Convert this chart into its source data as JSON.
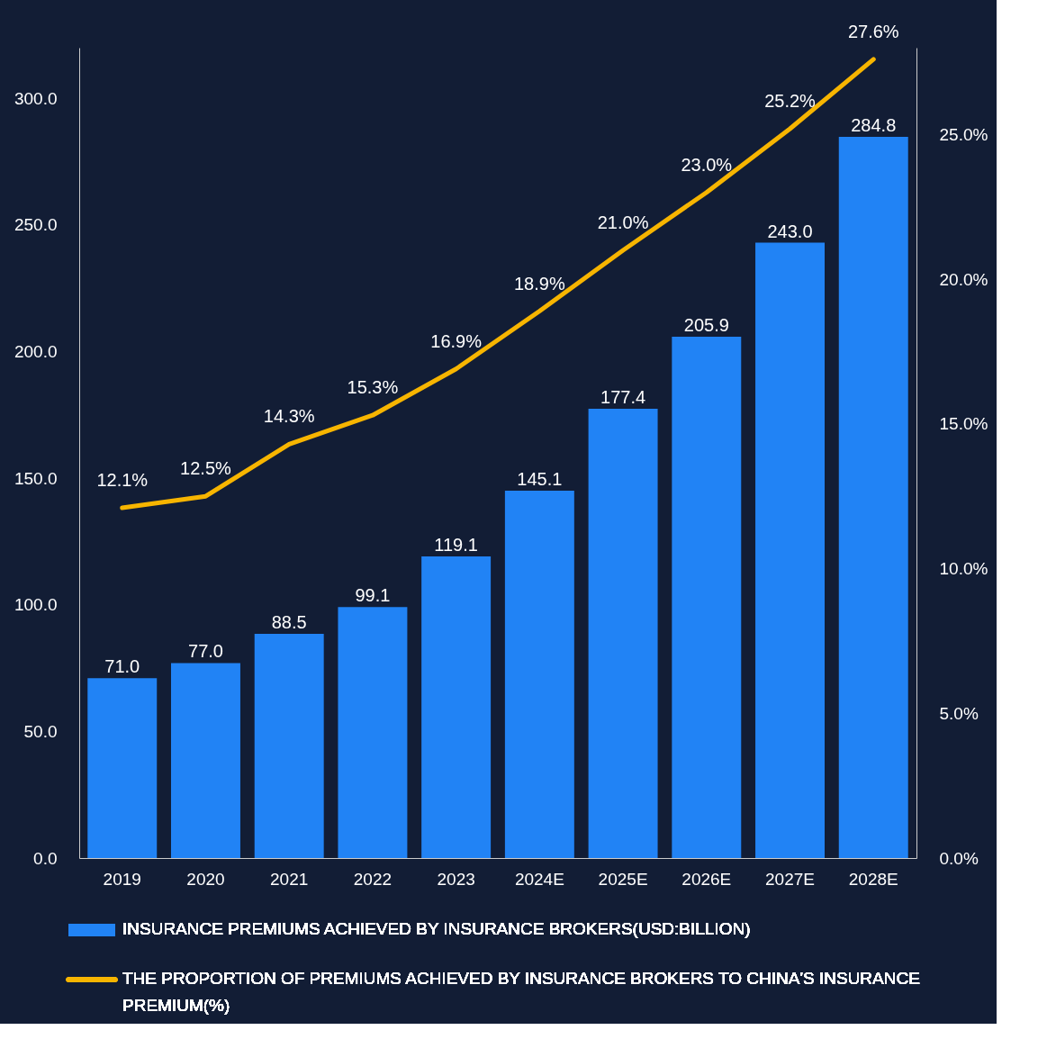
{
  "chart_data": {
    "type": "bar",
    "categories": [
      "2019",
      "2020",
      "2021",
      "2022",
      "2023",
      "2024E",
      "2025E",
      "2026E",
      "2027E",
      "2028E"
    ],
    "series": [
      {
        "name": "INSURANCE PREMIUMS ACHIEVED BY INSURANCE BROKERS(USD:BILLION)",
        "color": "#2183f5",
        "values": [
          71.0,
          77.0,
          88.5,
          99.1,
          119.1,
          145.1,
          177.4,
          205.9,
          243.0,
          284.8
        ],
        "value_labels": [
          "71.0",
          "77.0",
          "88.5",
          "99.1",
          "119.1",
          "145.1",
          "177.4",
          "205.9",
          "243.0",
          "284.8"
        ]
      },
      {
        "name": "THE PROPORTION OF PREMIUMS ACHIEVED BY INSURANCE BROKERS TO CHINA'S INSURANCE PREMIUM(%)",
        "type": "line",
        "axis": "y2",
        "color": "#f7b500",
        "values": [
          12.1,
          12.5,
          14.3,
          15.3,
          16.9,
          18.9,
          21.0,
          23.0,
          25.2,
          27.6
        ],
        "value_labels": [
          "12.1%",
          "12.5%",
          "14.3%",
          "15.3%",
          "16.9%",
          "18.9%",
          "21.0%",
          "23.0%",
          "25.2%",
          "27.6%"
        ]
      }
    ],
    "ylim": [
      0,
      320
    ],
    "yticks": [
      {
        "value": 0,
        "label": "0.0"
      },
      {
        "value": 50,
        "label": "50.0"
      },
      {
        "value": 100,
        "label": "100.0"
      },
      {
        "value": 150,
        "label": "150.0"
      },
      {
        "value": 200,
        "label": "200.0"
      },
      {
        "value": 250,
        "label": "250.0"
      },
      {
        "value": 300,
        "label": "300.0"
      }
    ],
    "y2lim": [
      0,
      28
    ],
    "y2ticks": [
      {
        "value": 0,
        "label": "0.0%"
      },
      {
        "value": 5,
        "label": "5.0%"
      },
      {
        "value": 10,
        "label": "10.0%"
      },
      {
        "value": 15,
        "label": "15.0%"
      },
      {
        "value": 20,
        "label": "20.0%"
      },
      {
        "value": 25,
        "label": "25.0%"
      }
    ],
    "grid": false,
    "legend": "bottom"
  }
}
